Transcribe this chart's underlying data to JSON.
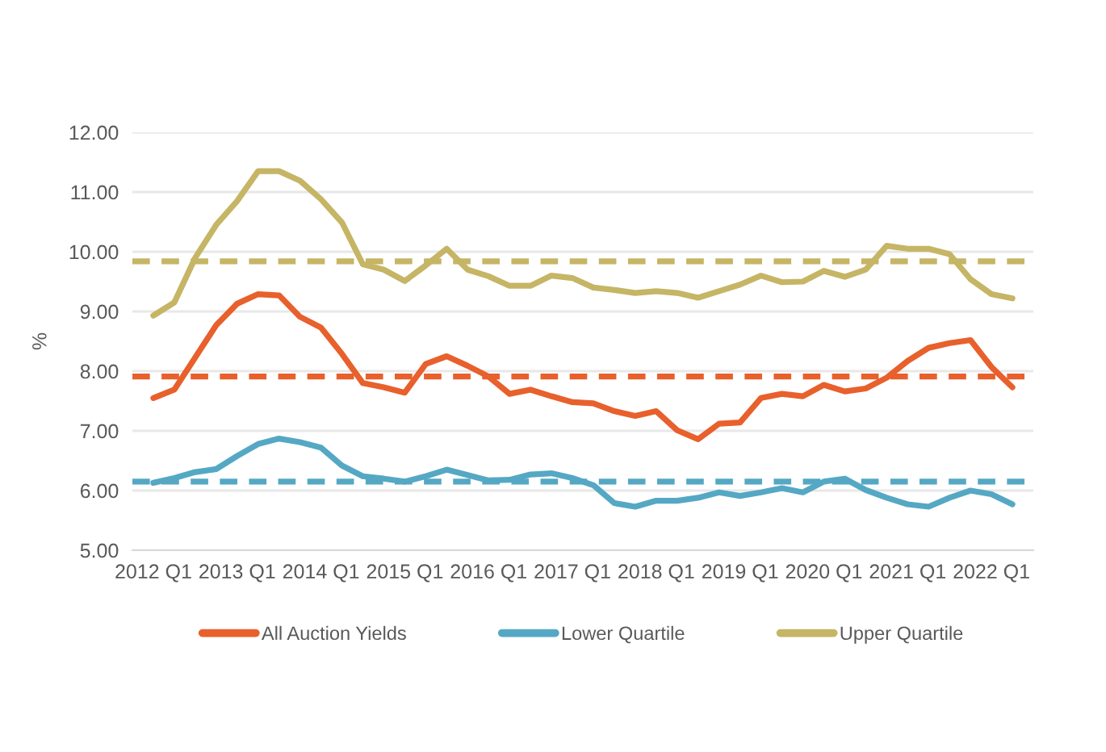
{
  "chart_data": {
    "type": "line",
    "categories": [
      "2012 Q1",
      null,
      null,
      null,
      "2013 Q1",
      null,
      null,
      null,
      "2014 Q1",
      null,
      null,
      null,
      "2015 Q1",
      null,
      null,
      null,
      "2016 Q1",
      null,
      null,
      null,
      "2017 Q1",
      null,
      null,
      null,
      "2018 Q1",
      null,
      null,
      null,
      "2019 Q1",
      null,
      null,
      null,
      "2020 Q1",
      null,
      null,
      null,
      "2021 Q1",
      null,
      null,
      null,
      "2022 Q1",
      null
    ],
    "series": [
      {
        "name": "All Auction Yields",
        "color": "#e8602c",
        "values": [
          7.55,
          7.69,
          8.23,
          8.77,
          9.13,
          9.29,
          9.27,
          8.91,
          8.73,
          8.29,
          7.8,
          7.73,
          7.64,
          8.12,
          8.25,
          8.09,
          7.91,
          7.62,
          7.69,
          7.58,
          7.48,
          7.46,
          7.33,
          7.25,
          7.33,
          7.01,
          6.86,
          7.12,
          7.14,
          7.55,
          7.62,
          7.58,
          7.77,
          7.66,
          7.71,
          7.89,
          8.17,
          8.39,
          8.47,
          8.52,
          8.07,
          7.73
        ]
      },
      {
        "name": "Lower Quartile",
        "color": "#55a8c4",
        "values": [
          6.13,
          6.21,
          6.31,
          6.36,
          6.58,
          6.78,
          6.87,
          6.81,
          6.72,
          6.42,
          6.24,
          6.2,
          6.15,
          6.24,
          6.35,
          6.26,
          6.17,
          6.18,
          6.27,
          6.29,
          6.21,
          6.09,
          5.79,
          5.73,
          5.83,
          5.83,
          5.88,
          5.97,
          5.91,
          5.97,
          6.04,
          5.97,
          6.15,
          6.2,
          6.01,
          5.88,
          5.77,
          5.73,
          5.88,
          6.0,
          5.94,
          5.77
        ]
      },
      {
        "name": "Upper Quartile",
        "color": "#c5b565",
        "values": [
          8.93,
          9.15,
          9.9,
          10.45,
          10.85,
          11.35,
          11.35,
          11.19,
          10.88,
          10.49,
          9.79,
          9.7,
          9.51,
          9.77,
          10.05,
          9.7,
          9.59,
          9.43,
          9.43,
          9.6,
          9.56,
          9.4,
          9.36,
          9.31,
          9.34,
          9.31,
          9.23,
          9.34,
          9.45,
          9.6,
          9.49,
          9.5,
          9.68,
          9.58,
          9.7,
          10.1,
          10.05,
          10.05,
          9.96,
          9.54,
          9.29,
          9.22
        ]
      }
    ],
    "ref_lines": [
      {
        "axis": "y",
        "value": 7.91,
        "color": "#e8602c",
        "line_style": "dashed"
      },
      {
        "axis": "y",
        "value": 6.15,
        "color": "#55a8c4",
        "line_style": "dashed"
      },
      {
        "axis": "y",
        "value": 9.84,
        "color": "#c5b565",
        "line_style": "dashed"
      }
    ],
    "ylabel": "%",
    "ylim": [
      5,
      12
    ],
    "yticks": [
      {
        "value": 5,
        "label": "5.00"
      },
      {
        "value": 6,
        "label": "6.00"
      },
      {
        "value": 7,
        "label": "7.00"
      },
      {
        "value": 8,
        "label": "8.00"
      },
      {
        "value": 9,
        "label": "9.00"
      },
      {
        "value": 10,
        "label": "10.00"
      },
      {
        "value": 11,
        "label": "11.00"
      },
      {
        "value": 12,
        "label": "12.00"
      }
    ],
    "grid": "y",
    "legend": "bottom",
    "marker": "none",
    "line_style": "solid"
  }
}
